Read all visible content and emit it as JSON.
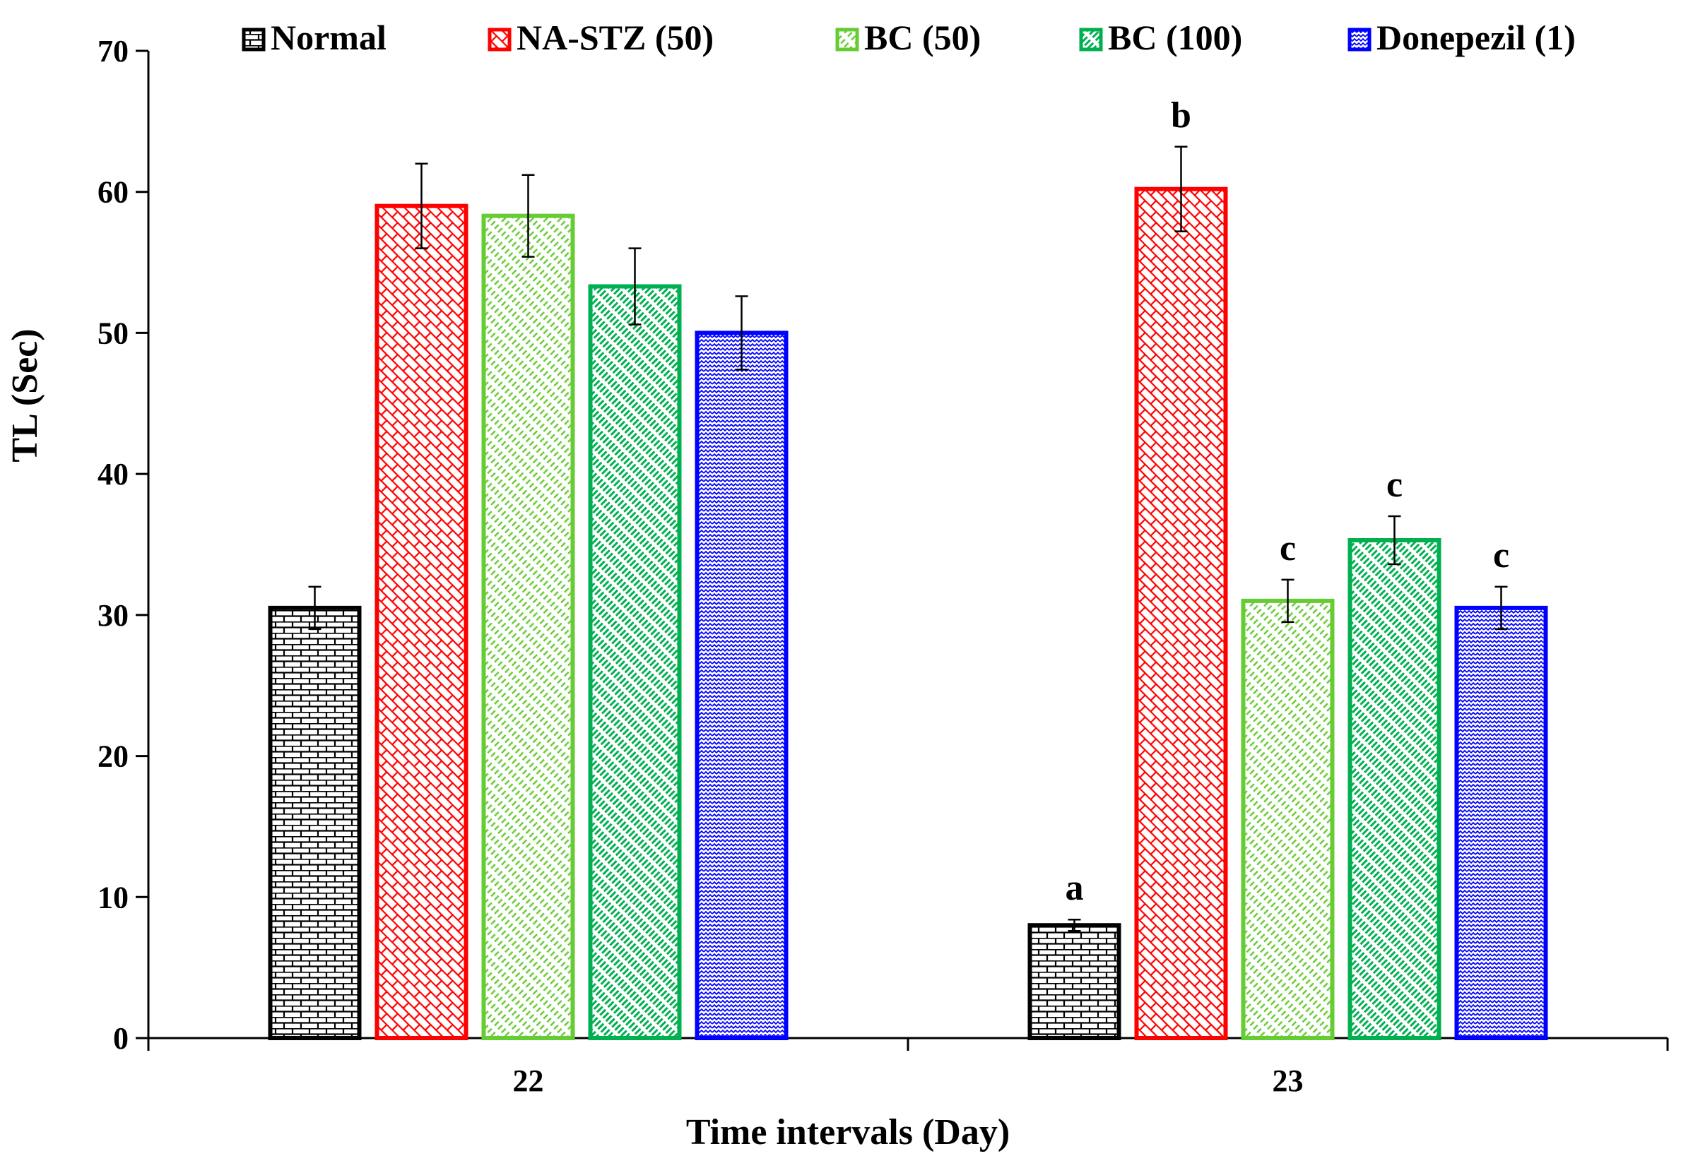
{
  "chart_data": {
    "type": "bar",
    "title": "",
    "xlabel": "Time intervals (Day)",
    "ylabel": "TL (Sec)",
    "ylim": [
      0,
      70
    ],
    "yticks": [
      0,
      10,
      20,
      30,
      40,
      50,
      60,
      70
    ],
    "categories": [
      "22",
      "23"
    ],
    "legend_position": "top",
    "grid": false,
    "series": [
      {
        "name": "Normal",
        "color": "#000000",
        "pattern": "brick",
        "values": [
          30.5,
          8.0
        ],
        "errors": [
          1.5,
          0.4
        ],
        "labels": [
          "",
          "a"
        ]
      },
      {
        "name": "NA-STZ (50)",
        "color": "#ff0000",
        "pattern": "diagonal-brick",
        "values": [
          59.0,
          60.2
        ],
        "errors": [
          3.0,
          3.0
        ],
        "labels": [
          "",
          "b"
        ]
      },
      {
        "name": "BC (50)",
        "color": "#66cc33",
        "pattern": "dashed-diagonal",
        "values": [
          58.3,
          31.0
        ],
        "errors": [
          2.9,
          1.5
        ],
        "labels": [
          "",
          "c"
        ]
      },
      {
        "name": "BC (100)",
        "color": "#00b050",
        "pattern": "wide-diagonal",
        "values": [
          53.3,
          35.3
        ],
        "errors": [
          2.7,
          1.7
        ],
        "labels": [
          "",
          "c"
        ]
      },
      {
        "name": "Donepezil (1)",
        "color": "#0000ff",
        "pattern": "zigzag",
        "values": [
          50.0,
          30.5
        ],
        "errors": [
          2.6,
          1.5
        ],
        "labels": [
          "",
          "c"
        ]
      }
    ]
  }
}
